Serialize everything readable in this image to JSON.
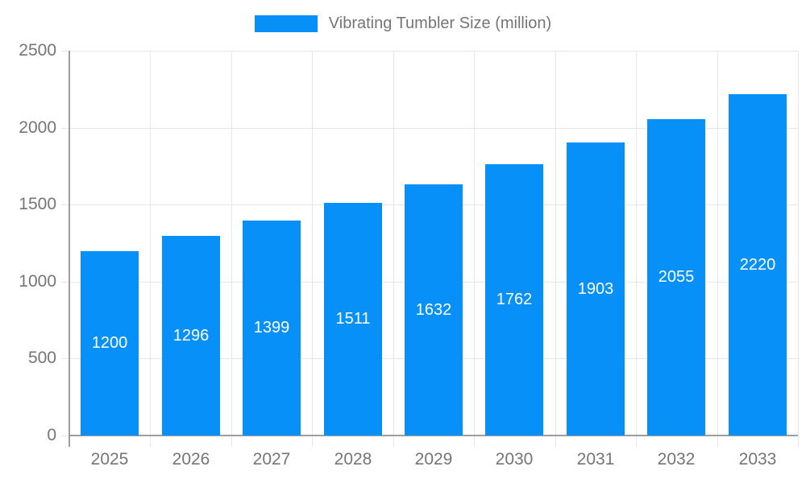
{
  "legend": {
    "label": "Vibrating Tumbler Size (million)"
  },
  "colors": {
    "bar": "#0690F8",
    "legend_text": "#757575",
    "axis_text": "#757575",
    "gridline": "#E6E6E6",
    "axis_line": "#9E9E9E",
    "value_label": "#FFFFFF",
    "background": "#FFFFFF"
  },
  "chart_data": {
    "type": "bar",
    "title": "Vibrating Tumbler Size (million)",
    "categories": [
      "2025",
      "2026",
      "2027",
      "2028",
      "2029",
      "2030",
      "2031",
      "2032",
      "2033"
    ],
    "values": [
      1200,
      1296,
      1399,
      1511,
      1632,
      1762,
      1903,
      2055,
      2220
    ],
    "series_name": "Vibrating Tumbler Size (million)",
    "xlabel": "",
    "ylabel": "",
    "ylim": [
      0,
      2500
    ],
    "yticks": [
      0,
      500,
      1000,
      1500,
      2000,
      2500
    ],
    "grid": true,
    "legend_position": "top",
    "value_labels_position": "inside-center"
  }
}
